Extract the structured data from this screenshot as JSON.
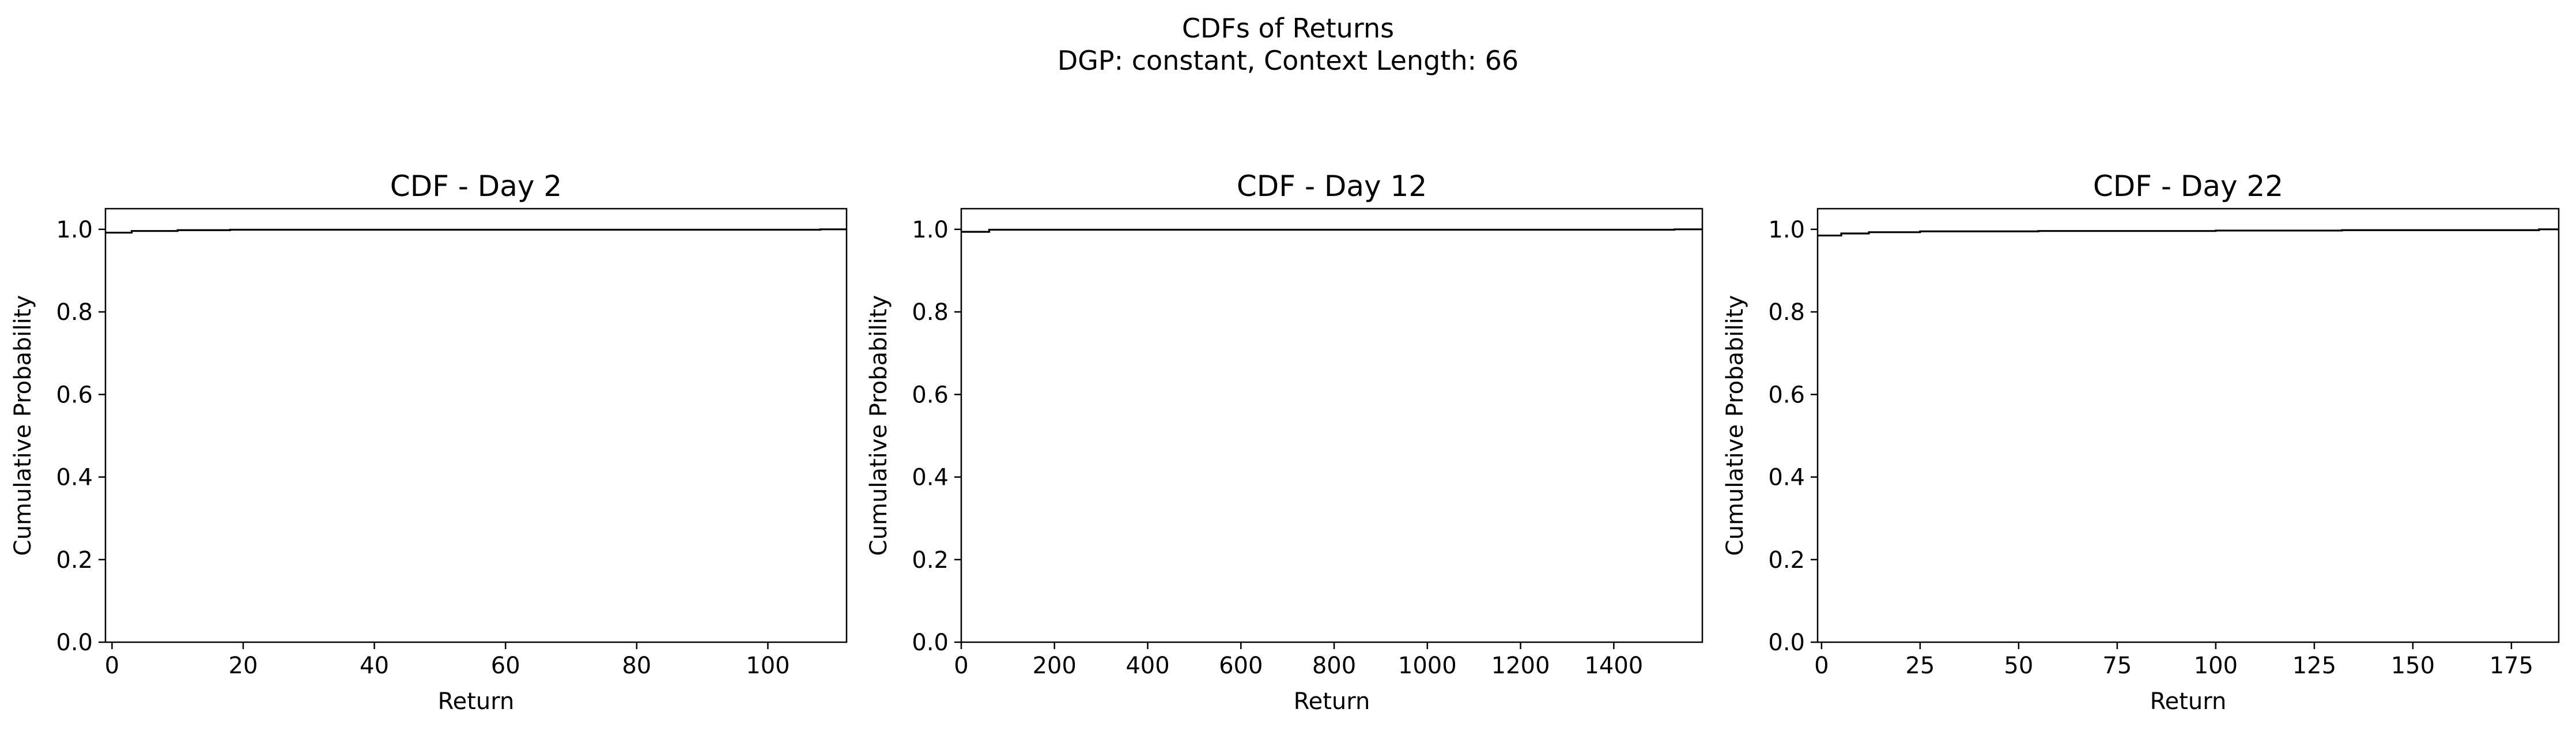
{
  "figure": {
    "suptitle_line1": "CDFs of Returns",
    "suptitle_line2": "DGP: constant, Context Length: 66"
  },
  "chart_data": [
    {
      "type": "line",
      "title": "CDF - Day 2",
      "xlabel": "Return",
      "ylabel": "Cumulative Probability",
      "xlim": [
        -1,
        112
      ],
      "ylim": [
        0,
        1.05
      ],
      "xticks": [
        0,
        20,
        40,
        60,
        80,
        100
      ],
      "yticks": [
        0.0,
        0.2,
        0.4,
        0.6,
        0.8,
        1.0
      ],
      "series": [
        {
          "name": "CDF",
          "color": "#000000",
          "x": [
            -1,
            3,
            10,
            18,
            40,
            80,
            108,
            112
          ],
          "y": [
            0.992,
            0.996,
            0.998,
            0.999,
            0.999,
            0.999,
            1.0,
            1.0
          ]
        }
      ]
    },
    {
      "type": "line",
      "title": "CDF - Day 12",
      "xlabel": "Return",
      "ylabel": "Cumulative Probability",
      "xlim": [
        0,
        1590
      ],
      "ylim": [
        0,
        1.05
      ],
      "xticks": [
        0,
        200,
        400,
        600,
        800,
        1000,
        1200,
        1400
      ],
      "yticks": [
        0.0,
        0.2,
        0.4,
        0.6,
        0.8,
        1.0
      ],
      "series": [
        {
          "name": "CDF",
          "color": "#000000",
          "x": [
            0,
            50,
            60,
            400,
            800,
            1200,
            1530,
            1590
          ],
          "y": [
            0.994,
            0.994,
            0.999,
            0.999,
            0.999,
            0.999,
            1.0,
            1.0
          ]
        }
      ]
    },
    {
      "type": "line",
      "title": "CDF - Day 22",
      "xlabel": "Return",
      "ylabel": "Cumulative Probability",
      "xlim": [
        -1,
        187
      ],
      "ylim": [
        0,
        1.05
      ],
      "xticks": [
        0,
        25,
        50,
        75,
        100,
        125,
        150,
        175
      ],
      "yticks": [
        0.0,
        0.2,
        0.4,
        0.6,
        0.8,
        1.0
      ],
      "series": [
        {
          "name": "CDF",
          "color": "#000000",
          "x": [
            -1,
            5,
            12,
            25,
            55,
            100,
            132,
            182,
            187
          ],
          "y": [
            0.985,
            0.99,
            0.993,
            0.995,
            0.996,
            0.997,
            0.998,
            1.0,
            1.0
          ]
        }
      ]
    }
  ]
}
